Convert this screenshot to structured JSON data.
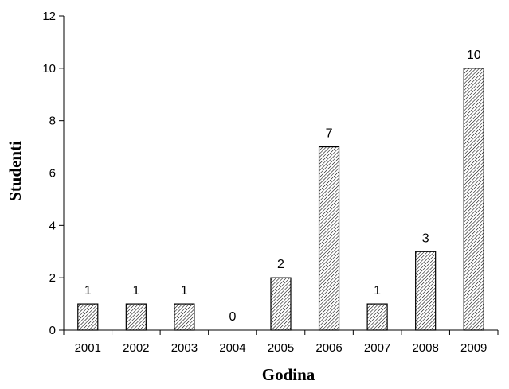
{
  "chart_data": {
    "type": "bar",
    "categories": [
      "2001",
      "2002",
      "2003",
      "2004",
      "2005",
      "2006",
      "2007",
      "2008",
      "2009"
    ],
    "values": [
      1,
      1,
      1,
      0,
      2,
      7,
      1,
      3,
      10
    ],
    "data_labels": [
      "1",
      "1",
      "1",
      "0",
      "2",
      "7",
      "1",
      "3",
      "10"
    ],
    "xlabel": "Godina",
    "ylabel": "Studenti",
    "ylim": [
      0,
      12
    ],
    "yticks": [
      0,
      2,
      4,
      6,
      8,
      10,
      12
    ],
    "grid": false,
    "legend": "none",
    "bar_fill": "diagonal-hatch",
    "colors": {
      "bar_stroke": "#000000",
      "hatch": "#000000",
      "background": "#ffffff"
    }
  }
}
